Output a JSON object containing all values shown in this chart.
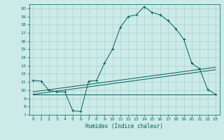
{
  "title": "",
  "xlabel": "Humidex (Indice chaleur)",
  "bg_color": "#cceae7",
  "line_color": "#006060",
  "grid_color": "#aad4d0",
  "xlim": [
    -0.5,
    23.5
  ],
  "ylim": [
    7,
    20.5
  ],
  "xticks": [
    0,
    1,
    2,
    3,
    4,
    5,
    6,
    7,
    8,
    9,
    10,
    11,
    12,
    13,
    14,
    15,
    16,
    17,
    18,
    19,
    20,
    21,
    22,
    23
  ],
  "yticks": [
    7,
    8,
    9,
    10,
    11,
    12,
    13,
    14,
    15,
    16,
    17,
    18,
    19,
    20
  ],
  "curve1_x": [
    0,
    1,
    2,
    3,
    4,
    5,
    6,
    7,
    8,
    9,
    10,
    11,
    12,
    13,
    14,
    15,
    16,
    17,
    18,
    19,
    20,
    21,
    22,
    23
  ],
  "curve1_y": [
    11.2,
    11.1,
    10.0,
    9.8,
    9.8,
    7.5,
    7.4,
    11.1,
    11.2,
    13.3,
    15.0,
    17.7,
    19.0,
    19.2,
    20.2,
    19.5,
    19.2,
    18.5,
    17.5,
    16.2,
    13.3,
    12.6,
    10.1,
    9.5
  ],
  "curve2_x": [
    0,
    23
  ],
  "curve2_y": [
    9.5,
    9.5
  ],
  "curve3_x": [
    0,
    23
  ],
  "curve3_y": [
    9.5,
    12.5
  ],
  "curve4_x": [
    0,
    23
  ],
  "curve4_y": [
    9.8,
    12.8
  ]
}
